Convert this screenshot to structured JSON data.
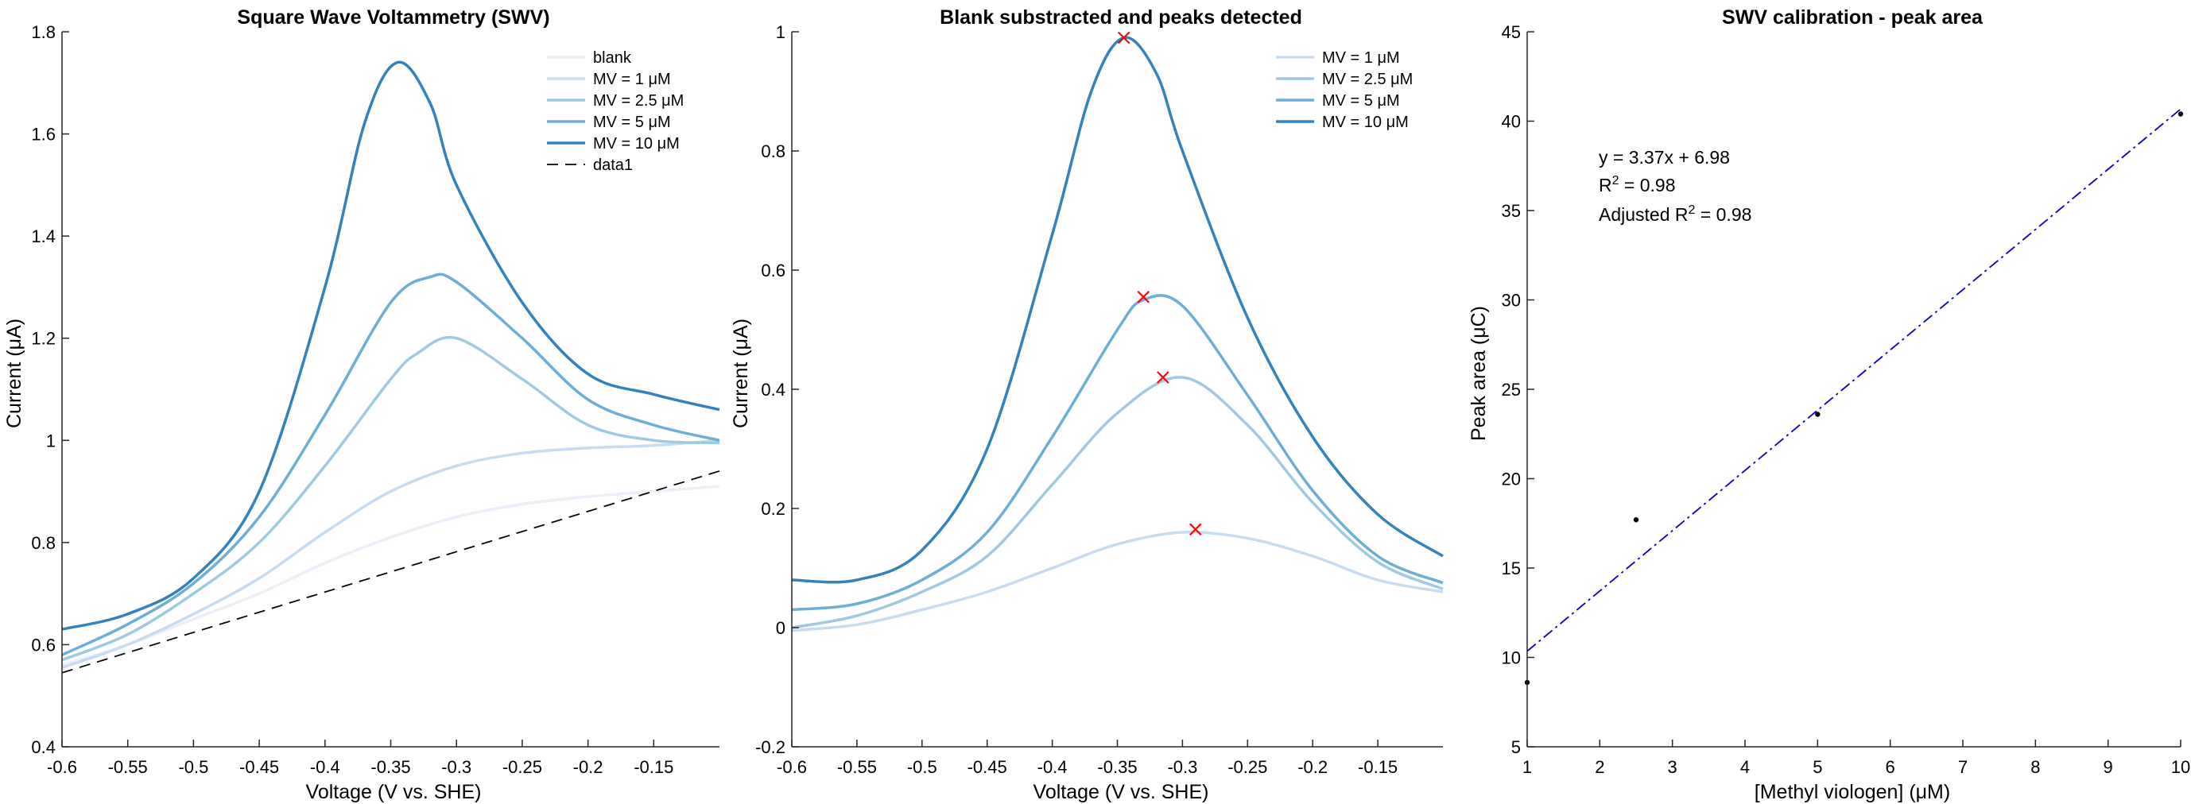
{
  "chart_data": [
    {
      "type": "line",
      "title": "Square Wave Voltammetry (SWV)",
      "xlabel": "Voltage (V vs. SHE)",
      "ylabel": "Current (μA)",
      "xlim": [
        -0.6,
        -0.1
      ],
      "ylim": [
        0.4,
        1.8
      ],
      "xticks": [
        "-0.6",
        "-0.55",
        "-0.5",
        "-0.45",
        "-0.4",
        "-0.35",
        "-0.3",
        "-0.25",
        "-0.2",
        "-0.15"
      ],
      "yticks": [
        "0.4",
        "0.6",
        "0.8",
        "1",
        "1.2",
        "1.4",
        "1.6",
        "1.8"
      ],
      "grid": false,
      "legend": "top-right",
      "series": [
        {
          "name": "blank",
          "color": "#eaf0f9",
          "dash": "",
          "x": [
            -0.6,
            -0.55,
            -0.5,
            -0.45,
            -0.4,
            -0.35,
            -0.3,
            -0.25,
            -0.2,
            -0.15,
            -0.1
          ],
          "y": [
            0.56,
            0.6,
            0.65,
            0.7,
            0.76,
            0.81,
            0.85,
            0.875,
            0.89,
            0.9,
            0.91
          ]
        },
        {
          "name": "MV = 1 μM",
          "color": "#c6dbef",
          "dash": "",
          "x": [
            -0.6,
            -0.55,
            -0.5,
            -0.45,
            -0.4,
            -0.35,
            -0.3,
            -0.25,
            -0.2,
            -0.15,
            -0.1
          ],
          "y": [
            0.555,
            0.6,
            0.66,
            0.73,
            0.82,
            0.9,
            0.95,
            0.975,
            0.985,
            0.99,
            1.0
          ]
        },
        {
          "name": "MV = 2.5 μM",
          "color": "#9ecae1",
          "dash": "",
          "x": [
            -0.6,
            -0.55,
            -0.5,
            -0.45,
            -0.4,
            -0.35,
            -0.33,
            -0.3,
            -0.25,
            -0.2,
            -0.15,
            -0.1
          ],
          "y": [
            0.57,
            0.62,
            0.7,
            0.8,
            0.95,
            1.12,
            1.17,
            1.2,
            1.12,
            1.03,
            1.0,
            0.995
          ]
        },
        {
          "name": "MV = 5 μM",
          "color": "#6baed6",
          "dash": "",
          "x": [
            -0.6,
            -0.55,
            -0.5,
            -0.45,
            -0.4,
            -0.35,
            -0.32,
            -0.3,
            -0.25,
            -0.2,
            -0.15,
            -0.1
          ],
          "y": [
            0.58,
            0.64,
            0.72,
            0.85,
            1.05,
            1.27,
            1.32,
            1.31,
            1.2,
            1.08,
            1.03,
            1.0
          ]
        },
        {
          "name": "MV = 10 μM",
          "color": "#3182bd",
          "dash": "",
          "x": [
            -0.6,
            -0.55,
            -0.5,
            -0.45,
            -0.4,
            -0.37,
            -0.345,
            -0.32,
            -0.3,
            -0.25,
            -0.2,
            -0.15,
            -0.1
          ],
          "y": [
            0.63,
            0.66,
            0.73,
            0.9,
            1.3,
            1.62,
            1.74,
            1.66,
            1.5,
            1.27,
            1.13,
            1.09,
            1.06
          ]
        },
        {
          "name": "data1",
          "color": "#000000",
          "dash": "14,9",
          "x": [
            -0.6,
            -0.1
          ],
          "y": [
            0.545,
            0.94
          ]
        }
      ]
    },
    {
      "type": "line",
      "title": "Blank substracted and peaks detected",
      "xlabel": "Voltage (V vs. SHE)",
      "ylabel": "Current (μA)",
      "xlim": [
        -0.6,
        -0.1
      ],
      "ylim": [
        -0.2,
        1.0
      ],
      "xticks": [
        "-0.6",
        "-0.55",
        "-0.5",
        "-0.45",
        "-0.4",
        "-0.35",
        "-0.3",
        "-0.25",
        "-0.2",
        "-0.15"
      ],
      "yticks": [
        "-0.2",
        "0",
        "0.2",
        "0.4",
        "0.6",
        "0.8",
        "1"
      ],
      "grid": false,
      "legend": "top-right",
      "series": [
        {
          "name": "MV = 1 μM",
          "color": "#c6dbef",
          "dash": "",
          "x": [
            -0.6,
            -0.55,
            -0.5,
            -0.45,
            -0.4,
            -0.35,
            -0.3,
            -0.25,
            -0.2,
            -0.15,
            -0.1
          ],
          "y": [
            -0.005,
            0.005,
            0.03,
            0.06,
            0.1,
            0.14,
            0.16,
            0.15,
            0.12,
            0.08,
            0.06
          ]
        },
        {
          "name": "MV = 2.5 μM",
          "color": "#9ecae1",
          "dash": "",
          "x": [
            -0.6,
            -0.55,
            -0.5,
            -0.45,
            -0.4,
            -0.35,
            -0.3,
            -0.25,
            -0.2,
            -0.15,
            -0.1
          ],
          "y": [
            0.0,
            0.02,
            0.06,
            0.12,
            0.24,
            0.36,
            0.42,
            0.34,
            0.21,
            0.11,
            0.065
          ]
        },
        {
          "name": "MV = 5 μM",
          "color": "#6baed6",
          "dash": "",
          "x": [
            -0.6,
            -0.55,
            -0.5,
            -0.45,
            -0.4,
            -0.35,
            -0.33,
            -0.3,
            -0.25,
            -0.2,
            -0.15,
            -0.1
          ],
          "y": [
            0.03,
            0.04,
            0.08,
            0.16,
            0.32,
            0.5,
            0.55,
            0.54,
            0.39,
            0.23,
            0.12,
            0.075
          ]
        },
        {
          "name": "MV = 10 μM",
          "color": "#3182bd",
          "dash": "",
          "x": [
            -0.6,
            -0.55,
            -0.5,
            -0.45,
            -0.4,
            -0.37,
            -0.345,
            -0.32,
            -0.3,
            -0.25,
            -0.2,
            -0.15,
            -0.1
          ],
          "y": [
            0.08,
            0.08,
            0.13,
            0.3,
            0.66,
            0.9,
            0.99,
            0.93,
            0.8,
            0.52,
            0.32,
            0.19,
            0.12
          ]
        }
      ],
      "peaks": {
        "color": "#ff0000",
        "x": [
          -0.345,
          -0.33,
          -0.315,
          -0.29
        ],
        "y": [
          0.99,
          0.555,
          0.42,
          0.165
        ]
      }
    },
    {
      "type": "scatter",
      "title": "SWV calibration - peak area",
      "xlabel": "[Methyl viologen] (μM)",
      "ylabel": "Peak area (μC)",
      "xlim": [
        1,
        10
      ],
      "ylim": [
        5,
        45
      ],
      "xticks": [
        "1",
        "2",
        "3",
        "4",
        "5",
        "6",
        "7",
        "8",
        "9",
        "10"
      ],
      "yticks": [
        "5",
        "10",
        "15",
        "20",
        "25",
        "30",
        "35",
        "40",
        "45"
      ],
      "grid": false,
      "points": {
        "color": "#000000",
        "x": [
          1,
          2.5,
          5,
          10
        ],
        "y": [
          8.6,
          17.7,
          23.6,
          40.4
        ]
      },
      "fit": {
        "color": "#0000cc",
        "dash": "14,5,3,5",
        "x": [
          1,
          10
        ],
        "y": [
          10.35,
          40.68
        ]
      },
      "annotation": {
        "line1": "y = 3.37x + 6.98",
        "line2_prefix": "R",
        "line2_sup": "2",
        "line2_suffix": " = 0.98",
        "line3_prefix": "Adjusted R",
        "line3_sup": "2",
        "line3_suffix": " = 0.98"
      }
    }
  ]
}
